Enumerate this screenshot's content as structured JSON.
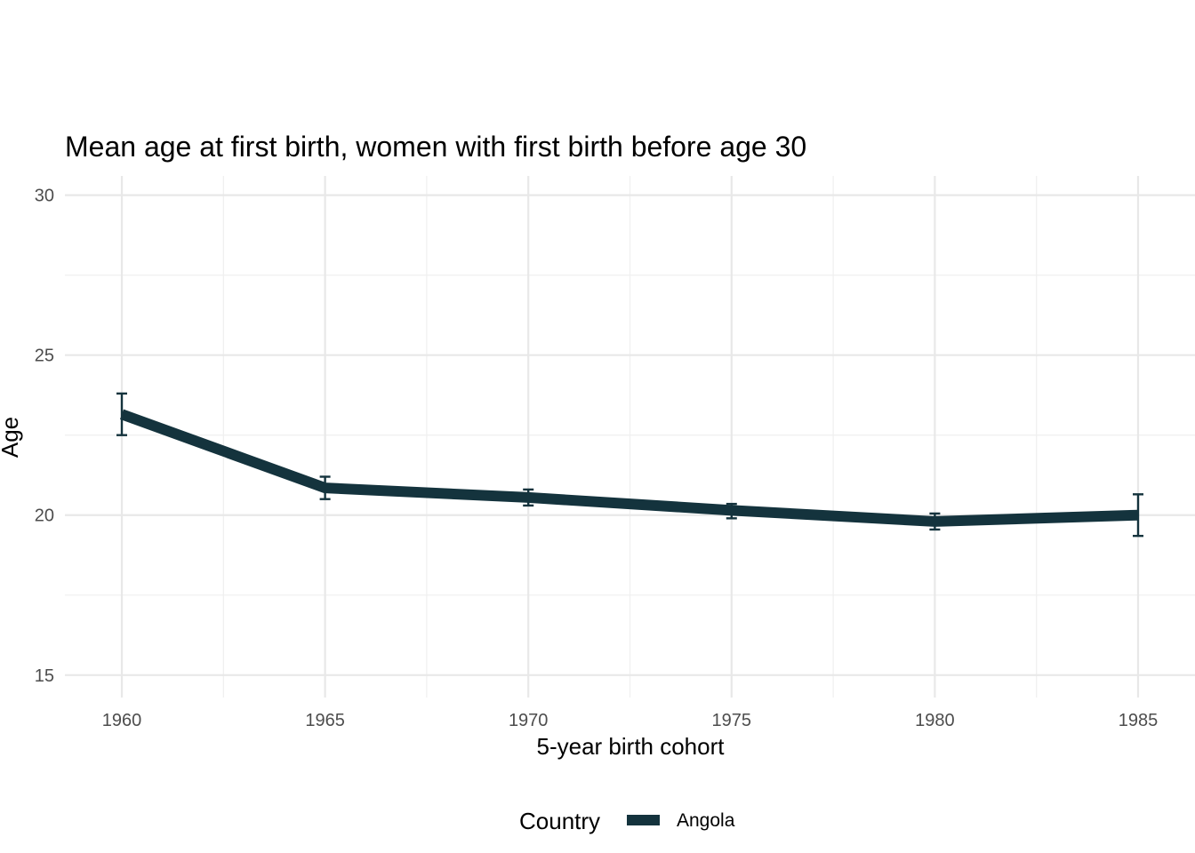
{
  "chart_data": {
    "type": "line",
    "title": "Mean age at first birth, women with first birth before age 30",
    "xlabel": "5-year birth cohort",
    "ylabel": "Age",
    "x": [
      1960,
      1965,
      1970,
      1975,
      1980,
      1985
    ],
    "x_ticks": [
      "1960",
      "1965",
      "1970",
      "1975",
      "1980",
      "1985"
    ],
    "y_ticks": [
      "15",
      "20",
      "25",
      "30"
    ],
    "xlim": [
      1958.6,
      1986.4
    ],
    "ylim": [
      14.3,
      30.6
    ],
    "grid": true,
    "legend": {
      "title": "Country",
      "placement": "bottom"
    },
    "series": [
      {
        "name": "Angola",
        "color": "#14333d",
        "values": [
          23.15,
          20.85,
          20.55,
          20.15,
          19.8,
          20.0
        ],
        "error_low": [
          22.5,
          20.5,
          20.3,
          19.9,
          19.55,
          19.35
        ],
        "error_high": [
          23.8,
          21.2,
          20.8,
          20.35,
          20.05,
          20.65
        ]
      }
    ]
  }
}
